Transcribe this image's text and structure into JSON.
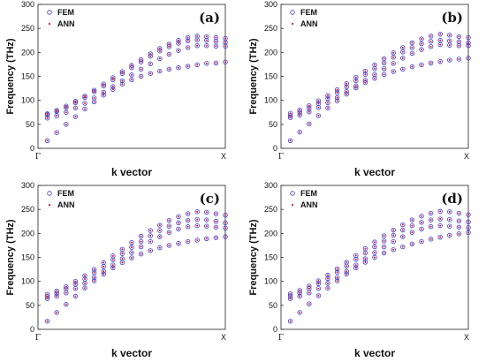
{
  "figure": {
    "xlabel": "k vector",
    "ylabel": "Frequency (THz)",
    "x_tick_labels": [
      "Γ",
      "X"
    ],
    "y_ticks": [
      0,
      50,
      100,
      150,
      200,
      250,
      300
    ],
    "legend": [
      {
        "name": "FEM",
        "marker": "open-circle",
        "color": "#3a3ad0"
      },
      {
        "name": "ANN",
        "marker": "dot",
        "color": "#d0182f"
      }
    ]
  },
  "chart_data": [
    {
      "type": "scatter",
      "panel": "(a)",
      "xlabel": "k vector",
      "ylabel": "Frequency (THz)",
      "ylim": [
        0,
        300
      ],
      "xlim": [
        0,
        20
      ],
      "x": [
        1,
        2,
        3,
        4,
        5,
        6,
        7,
        8,
        9,
        10,
        11,
        12,
        13,
        14,
        15,
        16,
        17,
        18,
        19,
        20
      ],
      "series": [
        {
          "name": "FEM",
          "bands": [
            [
              16,
              33,
              50,
              66,
              82,
              97,
              111,
              123,
              134,
              143,
              150,
              156,
              161,
              165,
              168,
              171,
              174,
              177,
              178,
              180
            ],
            [
              63,
              68,
              75,
              84,
              94,
              105,
              117,
              129,
              141,
              153,
              165,
              176,
              187,
              196,
              204,
              210,
              214,
              214,
              213,
              213
            ],
            [
              70,
              77,
              85,
              95,
              106,
              118,
              130,
              143,
              156,
              168,
              180,
              192,
              203,
              212,
              219,
              224,
              226,
              225,
              223,
              221
            ],
            [
              72,
              79,
              88,
              98,
              109,
              121,
              134,
              147,
              160,
              173,
              185,
              197,
              208,
              217,
              225,
              231,
              234,
              233,
              231,
              229
            ]
          ]
        },
        {
          "name": "ANN",
          "bands": [
            [
              16,
              33,
              50,
              66,
              82,
              97,
              111,
              123,
              134,
              143,
              150,
              156,
              161,
              165,
              168,
              171,
              174,
              177,
              178,
              180
            ],
            [
              63,
              68,
              75,
              84,
              94,
              105,
              117,
              129,
              141,
              153,
              165,
              176,
              187,
              196,
              204,
              210,
              214,
              214,
              213,
              213
            ],
            [
              70,
              77,
              85,
              95,
              106,
              118,
              130,
              143,
              156,
              168,
              180,
              192,
              203,
              212,
              219,
              224,
              226,
              225,
              223,
              221
            ],
            [
              72,
              79,
              88,
              98,
              109,
              121,
              134,
              147,
              160,
              173,
              185,
              197,
              208,
              217,
              225,
              231,
              234,
              233,
              231,
              229
            ]
          ]
        }
      ]
    },
    {
      "type": "scatter",
      "panel": "(b)",
      "xlabel": "k vector",
      "ylabel": "Frequency (THz)",
      "ylim": [
        0,
        300
      ],
      "xlim": [
        0,
        20
      ],
      "x": [
        1,
        2,
        3,
        4,
        5,
        6,
        7,
        8,
        9,
        10,
        11,
        12,
        13,
        14,
        15,
        16,
        17,
        18,
        19,
        20
      ],
      "series": [
        {
          "name": "FEM",
          "bands": [
            [
              16,
              34,
              51,
              68,
              84,
              99,
              113,
              126,
              137,
              146,
              154,
              160,
              165,
              170,
              174,
              178,
              181,
              184,
              186,
              188
            ],
            [
              64,
              69,
              76,
              85,
              95,
              106,
              118,
              130,
              142,
              154,
              166,
              177,
              188,
              198,
              206,
              212,
              216,
              215,
              214,
              214
            ],
            [
              68,
              75,
              83,
              93,
              104,
              116,
              128,
              141,
              154,
              166,
              178,
              190,
              201,
              210,
              218,
              223,
              225,
              224,
              222,
              220
            ],
            [
              73,
              80,
              89,
              99,
              110,
              122,
              135,
              148,
              161,
              174,
              187,
              199,
              210,
              220,
              228,
              234,
              238,
              236,
              233,
              231
            ]
          ]
        },
        {
          "name": "ANN",
          "bands": [
            [
              16,
              34,
              51,
              68,
              84,
              99,
              113,
              126,
              137,
              146,
              154,
              160,
              165,
              170,
              174,
              178,
              181,
              184,
              186,
              188
            ],
            [
              64,
              69,
              76,
              85,
              95,
              106,
              118,
              130,
              142,
              154,
              166,
              177,
              188,
              198,
              206,
              212,
              216,
              215,
              214,
              214
            ],
            [
              68,
              75,
              83,
              93,
              104,
              116,
              128,
              141,
              154,
              166,
              178,
              190,
              201,
              210,
              218,
              223,
              225,
              224,
              222,
              220
            ],
            [
              73,
              80,
              89,
              99,
              110,
              122,
              135,
              148,
              161,
              174,
              187,
              199,
              210,
              220,
              228,
              234,
              238,
              236,
              233,
              231
            ]
          ]
        }
      ]
    },
    {
      "type": "scatter",
      "panel": "(c)",
      "xlabel": "k vector",
      "ylabel": "Frequency (THz)",
      "ylim": [
        0,
        300
      ],
      "xlim": [
        0,
        20
      ],
      "x": [
        1,
        2,
        3,
        4,
        5,
        6,
        7,
        8,
        9,
        10,
        11,
        12,
        13,
        14,
        15,
        16,
        17,
        18,
        19,
        20
      ],
      "series": [
        {
          "name": "FEM",
          "bands": [
            [
              17,
              35,
              52,
              69,
              86,
              101,
              115,
              128,
              139,
              149,
              157,
              164,
              170,
              175,
              179,
              183,
              186,
              189,
              191,
              193
            ],
            [
              64,
              69,
              76,
              85,
              96,
              108,
              121,
              134,
              147,
              160,
              172,
              183,
              193,
              202,
              209,
              214,
              216,
              215,
              213,
              211
            ],
            [
              68,
              75,
              84,
              94,
              105,
              118,
              131,
              145,
              158,
              171,
              183,
              195,
              206,
              215,
              222,
              227,
              229,
              228,
              225,
              222
            ],
            [
              73,
              80,
              89,
              100,
              112,
              125,
              139,
              153,
              167,
              181,
              194,
              206,
              217,
              227,
              235,
              241,
              245,
              244,
              241,
              238
            ]
          ]
        },
        {
          "name": "ANN",
          "bands": [
            [
              17,
              35,
              52,
              69,
              86,
              101,
              115,
              128,
              139,
              149,
              157,
              164,
              170,
              175,
              179,
              183,
              186,
              189,
              191,
              193
            ],
            [
              64,
              69,
              76,
              85,
              96,
              108,
              121,
              134,
              147,
              160,
              172,
              183,
              193,
              202,
              209,
              214,
              216,
              215,
              213,
              211
            ],
            [
              68,
              75,
              84,
              94,
              105,
              118,
              131,
              145,
              158,
              171,
              183,
              195,
              206,
              215,
              222,
              227,
              229,
              228,
              225,
              222
            ],
            [
              73,
              80,
              89,
              100,
              112,
              125,
              139,
              153,
              167,
              181,
              194,
              206,
              217,
              227,
              235,
              241,
              245,
              244,
              241,
              238
            ]
          ]
        }
      ]
    },
    {
      "type": "scatter",
      "panel": "(d)",
      "xlabel": "k vector",
      "ylabel": "Frequency (THz)",
      "ylim": [
        0,
        300
      ],
      "xlim": [
        0,
        20
      ],
      "x": [
        1,
        2,
        3,
        4,
        5,
        6,
        7,
        8,
        9,
        10,
        11,
        12,
        13,
        14,
        15,
        16,
        17,
        18,
        19,
        20
      ],
      "series": [
        {
          "name": "FEM",
          "bands": [
            [
              17,
              35,
              53,
              70,
              86,
              101,
              115,
              128,
              140,
              150,
              159,
              166,
              172,
              178,
              183,
              188,
              192,
              196,
              199,
              202
            ],
            [
              64,
              69,
              76,
              85,
              96,
              108,
              121,
              134,
              147,
              160,
              172,
              183,
              193,
              202,
              209,
              214,
              216,
              215,
              213,
              212
            ],
            [
              69,
              76,
              85,
              95,
              106,
              119,
              132,
              146,
              159,
              172,
              184,
              196,
              207,
              216,
              223,
              228,
              230,
              229,
              226,
              224
            ],
            [
              74,
              81,
              90,
              101,
              113,
              126,
              140,
              154,
              168,
              182,
              195,
              207,
              218,
              228,
              236,
              242,
              246,
              245,
              242,
              239
            ]
          ]
        },
        {
          "name": "ANN",
          "bands": [
            [
              17,
              35,
              53,
              70,
              86,
              101,
              115,
              128,
              140,
              150,
              159,
              166,
              172,
              178,
              183,
              188,
              192,
              196,
              199,
              202
            ],
            [
              64,
              69,
              76,
              85,
              96,
              108,
              121,
              134,
              147,
              160,
              172,
              183,
              193,
              202,
              209,
              214,
              216,
              215,
              213,
              212
            ],
            [
              69,
              76,
              85,
              95,
              106,
              119,
              132,
              146,
              159,
              172,
              184,
              196,
              207,
              216,
              223,
              228,
              230,
              229,
              226,
              224
            ],
            [
              74,
              81,
              90,
              101,
              113,
              126,
              140,
              154,
              168,
              182,
              195,
              207,
              218,
              228,
              236,
              242,
              246,
              245,
              242,
              239
            ]
          ]
        }
      ]
    }
  ]
}
